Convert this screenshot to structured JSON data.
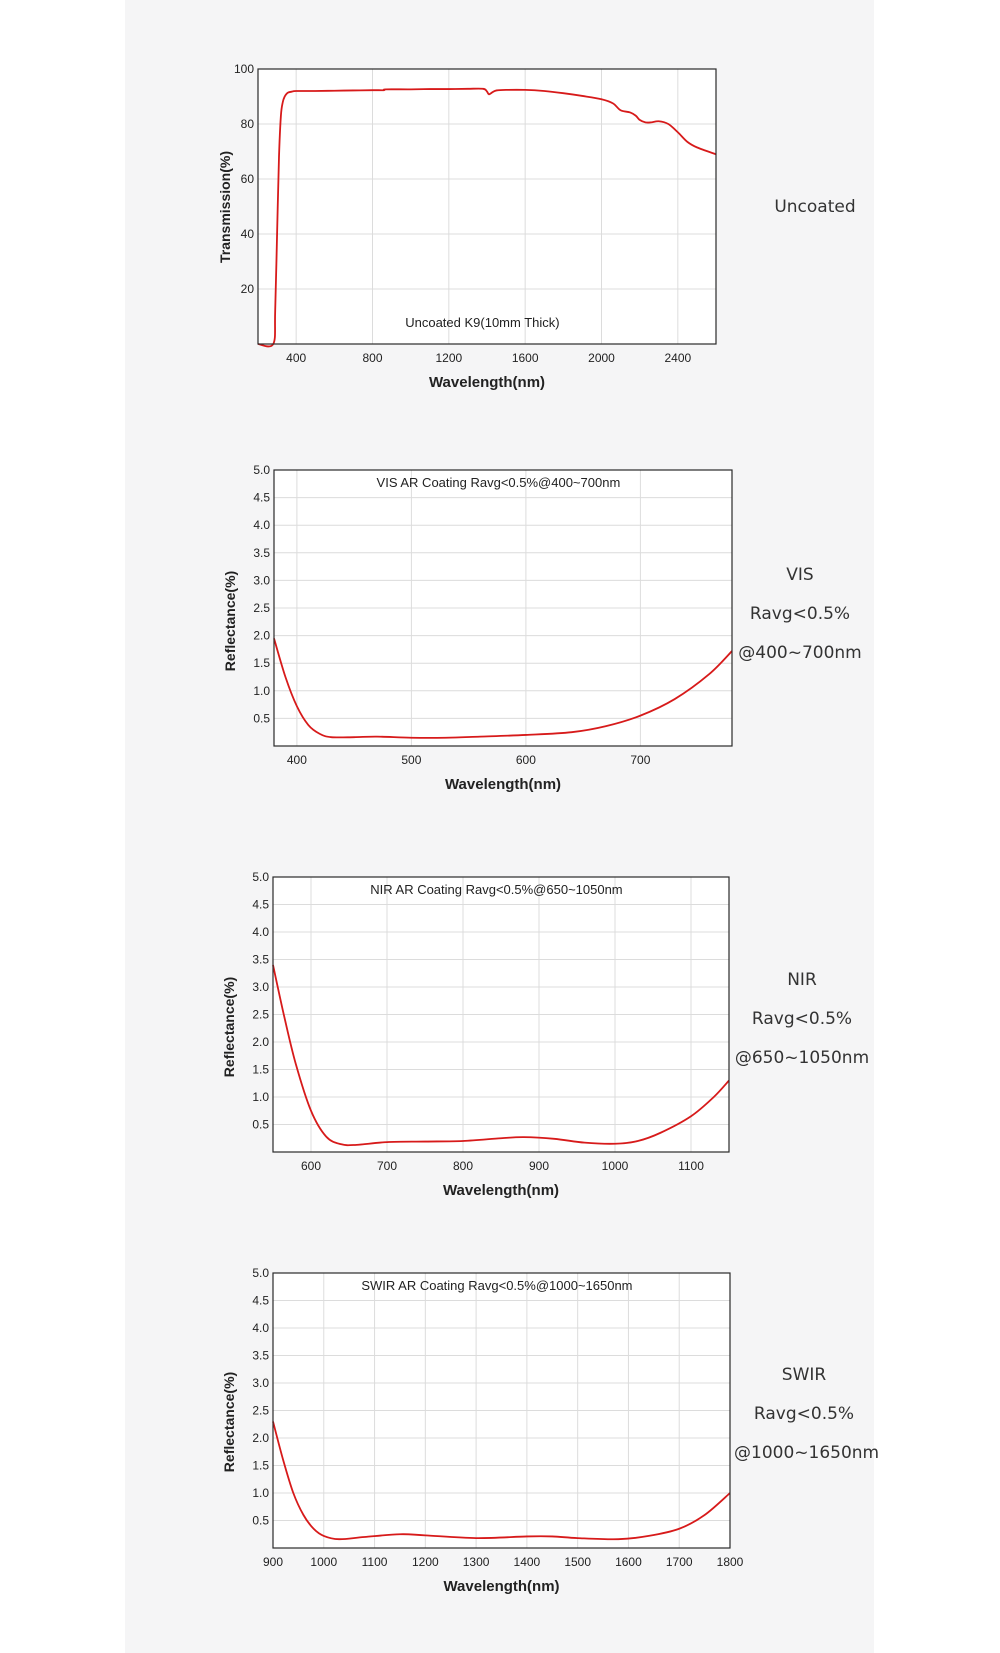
{
  "colors": {
    "line": "#d71a1a",
    "grid": "#dcdcdc",
    "frame": "#2a2a2a",
    "panel": "#f5f5f6"
  },
  "chart_data": [
    {
      "type": "line",
      "title": "Uncoated K9(10mm Thick)",
      "xlabel": "Wavelength(nm)",
      "ylabel": "Transmission(%)",
      "xlim": [
        200,
        2600
      ],
      "ylim": [
        0,
        100
      ],
      "xticks": [
        400,
        800,
        1200,
        1600,
        2000,
        2400
      ],
      "yticks": [
        20,
        40,
        60,
        80,
        100
      ],
      "grid": true,
      "side_labels": [
        "Uncoated"
      ],
      "series": [
        {
          "x": [
            200,
            280,
            290,
            300,
            310,
            320,
            330,
            340,
            350,
            360,
            380,
            400,
            500,
            600,
            700,
            800,
            860,
            870,
            1000,
            1100,
            1200,
            1300,
            1380,
            1400,
            1410,
            1430,
            1450,
            1500,
            1600,
            1700,
            1800,
            1900,
            2000,
            2060,
            2100,
            2150,
            2180,
            2200,
            2230,
            2260,
            2300,
            2350,
            2400,
            2450,
            2500,
            2600
          ],
          "y": [
            0,
            0,
            12,
            40,
            68,
            83,
            88,
            90,
            91,
            91.5,
            91.8,
            92,
            92,
            92.1,
            92.2,
            92.3,
            92.3,
            92.6,
            92.6,
            92.7,
            92.7,
            92.8,
            92.8,
            91.8,
            90.8,
            91.6,
            92.2,
            92.4,
            92.4,
            92,
            91.2,
            90.2,
            89,
            87.5,
            85,
            84.2,
            83,
            81.5,
            80.6,
            80.6,
            81,
            80,
            77,
            73.5,
            71.5,
            69
          ]
        }
      ]
    },
    {
      "type": "line",
      "title": "VIS AR Coating Ravg<0.5%@400~700nm",
      "xlabel": "Wavelength(nm)",
      "ylabel": "Reflectance(%)",
      "xlim": [
        380,
        780
      ],
      "ylim": [
        0,
        5.0
      ],
      "xticks": [
        400,
        500,
        600,
        700
      ],
      "yticks": [
        "0.5",
        "1.0",
        "1.5",
        "2.0",
        "2.5",
        "3.0",
        "3.5",
        "4.0",
        "4.5",
        "5.0"
      ],
      "grid": true,
      "side_labels": [
        "VIS",
        "Ravg<0.5%",
        "@400~700nm"
      ],
      "series": [
        {
          "x": [
            380,
            390,
            400,
            410,
            420,
            430,
            450,
            470,
            500,
            530,
            560,
            600,
            640,
            670,
            700,
            730,
            760,
            780
          ],
          "y": [
            1.95,
            1.25,
            0.72,
            0.38,
            0.22,
            0.16,
            0.16,
            0.17,
            0.15,
            0.15,
            0.17,
            0.2,
            0.25,
            0.36,
            0.55,
            0.85,
            1.3,
            1.72
          ]
        }
      ]
    },
    {
      "type": "line",
      "title": "NIR AR Coating Ravg<0.5%@650~1050nm",
      "xlabel": "Wavelength(nm)",
      "ylabel": "Reflectance(%)",
      "xlim": [
        550,
        1150
      ],
      "ylim": [
        0,
        5.0
      ],
      "xticks": [
        600,
        700,
        800,
        900,
        1000,
        1100
      ],
      "yticks": [
        "0.5",
        "1.0",
        "1.5",
        "2.0",
        "2.5",
        "3.0",
        "3.5",
        "4.0",
        "4.5",
        "5.0"
      ],
      "grid": true,
      "side_labels": [
        "NIR",
        "Ravg<0.5%",
        "@650~1050nm"
      ],
      "series": [
        {
          "x": [
            550,
            565,
            580,
            600,
            620,
            640,
            660,
            700,
            750,
            800,
            850,
            880,
            920,
            960,
            1000,
            1030,
            1060,
            1100,
            1130,
            1150
          ],
          "y": [
            3.4,
            2.45,
            1.6,
            0.75,
            0.28,
            0.14,
            0.13,
            0.18,
            0.19,
            0.2,
            0.25,
            0.27,
            0.24,
            0.17,
            0.15,
            0.2,
            0.35,
            0.65,
            1.0,
            1.3
          ]
        }
      ]
    },
    {
      "type": "line",
      "title": "SWIR AR Coating Ravg<0.5%@1000~1650nm",
      "xlabel": "Wavelength(nm)",
      "ylabel": "Reflectance(%)",
      "xlim": [
        900,
        1800
      ],
      "ylim": [
        0,
        5.0
      ],
      "xticks": [
        900,
        1000,
        1100,
        1200,
        1300,
        1400,
        1500,
        1600,
        1700,
        1800
      ],
      "yticks": [
        "0.5",
        "1.0",
        "1.5",
        "2.0",
        "2.5",
        "3.0",
        "3.5",
        "4.0",
        "4.5",
        "5.0"
      ],
      "grid": true,
      "side_labels": [
        "SWIR",
        "Ravg<0.5%",
        "@1000~1650nm"
      ],
      "series": [
        {
          "x": [
            900,
            920,
            940,
            960,
            980,
            1000,
            1030,
            1080,
            1150,
            1200,
            1300,
            1400,
            1450,
            1500,
            1580,
            1640,
            1700,
            1750,
            1800
          ],
          "y": [
            2.3,
            1.6,
            1.0,
            0.6,
            0.35,
            0.22,
            0.16,
            0.2,
            0.25,
            0.23,
            0.18,
            0.21,
            0.21,
            0.18,
            0.16,
            0.22,
            0.35,
            0.6,
            1.0
          ]
        }
      ]
    }
  ]
}
